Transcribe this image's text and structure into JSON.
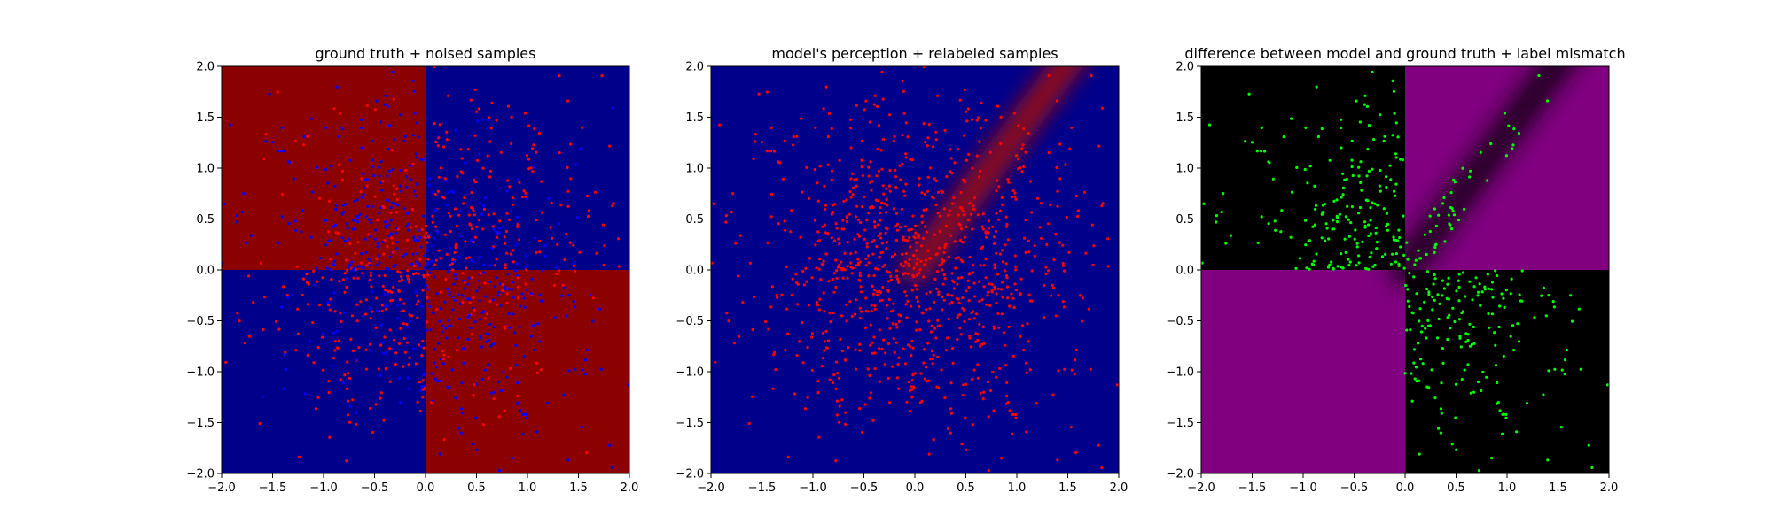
{
  "chart_data": [
    {
      "type": "heatmap",
      "title": "ground truth + noised samples",
      "xlabel": "",
      "ylabel": "",
      "xlim": [
        -2.0,
        2.0
      ],
      "ylim": [
        -2.0,
        2.0
      ],
      "x_ticks": [
        "−2.0",
        "−1.5",
        "−1.0",
        "−0.5",
        "0.0",
        "0.5",
        "1.0",
        "1.5",
        "2.0"
      ],
      "y_ticks": [
        "−2.0",
        "−1.5",
        "−1.0",
        "−0.5",
        "0.0",
        "0.5",
        "1.0",
        "1.5",
        "2.0"
      ],
      "background": {
        "description": "XOR of sign(x) and sign(y)",
        "colors": {
          "same_sign": "#00008b",
          "opposite_sign": "#8b0000"
        }
      },
      "scatter": {
        "approx_count": 1000,
        "point_colors": [
          "#ff0000",
          "#0000ff"
        ],
        "coloring": "label with noise: mostly red in x*y>0 quadrants, mostly blue in x*y<0 quadrants"
      }
    },
    {
      "type": "heatmap",
      "title": "model's perception + relabeled samples",
      "xlabel": "",
      "ylabel": "",
      "xlim": [
        -2.0,
        2.0
      ],
      "ylim": [
        -2.0,
        2.0
      ],
      "x_ticks": [
        "−2.0",
        "−1.5",
        "−1.0",
        "−0.5",
        "0.0",
        "0.5",
        "1.0",
        "1.5",
        "2.0"
      ],
      "y_ticks": [
        "−2.0",
        "−1.5",
        "−1.0",
        "−0.5",
        "0.0",
        "0.5",
        "1.0",
        "1.5",
        "2.0"
      ],
      "background": {
        "description": "almost entirely blue with a diffuse red band along the diagonal from (0,0) to (1.5,2.0)",
        "colors": {
          "base": "#00008b",
          "band": "#8b0000"
        }
      },
      "scatter": {
        "approx_count": 1000,
        "point_colors": [
          "#ff0000"
        ],
        "coloring": "all samples relabeled red"
      }
    },
    {
      "type": "heatmap",
      "title": "difference between model and ground truth + label mismatch",
      "xlabel": "",
      "ylabel": "",
      "xlim": [
        -2.0,
        2.0
      ],
      "ylim": [
        -2.0,
        2.0
      ],
      "x_ticks": [
        "−2.0",
        "−1.5",
        "−1.0",
        "−0.5",
        "0.0",
        "0.5",
        "1.0",
        "1.5",
        "2.0"
      ],
      "y_ticks": [
        "−2.0",
        "−1.5",
        "−1.0",
        "−0.5",
        "0.0",
        "0.5",
        "1.0",
        "1.5",
        "2.0"
      ],
      "background": {
        "description": "purple where model disagrees with ground truth (x*y>0 quadrants), black elsewhere, with dark diagonal band",
        "colors": {
          "mismatch": "#800080",
          "match": "#000000"
        }
      },
      "scatter": {
        "approx_count": 500,
        "point_colors": [
          "#00ff00"
        ],
        "coloring": "green points where labels mismatch, mostly in top-left and bottom-right quadrants"
      }
    }
  ]
}
